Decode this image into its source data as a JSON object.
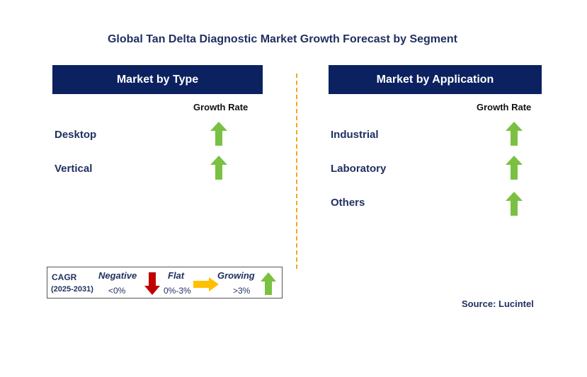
{
  "title": "Global Tan Delta Diagnostic Market Growth Forecast by Segment",
  "left_panel": {
    "header": "Market by Type",
    "growth_label": "Growth Rate",
    "rows": [
      {
        "label": "Desktop",
        "trend": "growing"
      },
      {
        "label": "Vertical",
        "trend": "growing"
      }
    ]
  },
  "right_panel": {
    "header": "Market by Application",
    "growth_label": "Growth Rate",
    "rows": [
      {
        "label": "Industrial",
        "trend": "growing"
      },
      {
        "label": "Laboratory",
        "trend": "growing"
      },
      {
        "label": "Others",
        "trend": "growing"
      }
    ]
  },
  "legend": {
    "cagr_label": "CAGR",
    "period": "(2025-2031)",
    "negative_label": "Negative",
    "negative_range": "<0%",
    "flat_label": "Flat",
    "flat_range": "0%-3%",
    "growing_label": "Growing",
    "growing_range": ">3%"
  },
  "source": "Source: Lucintel",
  "colors": {
    "header_bg": "#0b2160",
    "growing_arrow": "#7ac143",
    "negative_arrow": "#c00000",
    "flat_arrow": "#ffc000",
    "divider": "#f2a81d"
  }
}
